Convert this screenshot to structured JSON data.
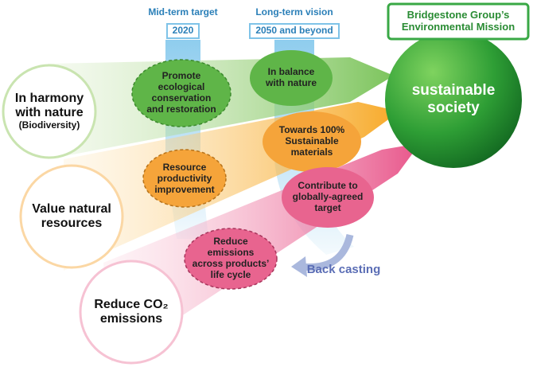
{
  "timeline": [
    {
      "label": "Mid-term target",
      "year": "2020"
    },
    {
      "label": "Long-term vision",
      "year": "2050 and beyond"
    }
  ],
  "mission": {
    "lines": [
      "Bridgestone Group’s",
      "Environmental Mission"
    ]
  },
  "goal": "sustainable society",
  "pillars": [
    {
      "title": "In harmony with nature",
      "note": "(Biodiversity)"
    },
    {
      "title": "Value natural resources"
    },
    {
      "title": "Reduce CO₂ emissions"
    }
  ],
  "initiatives": [
    {
      "mid_term": "Promote ecological conservation and restoration",
      "long_term": "In balance with nature"
    },
    {
      "mid_term": "Resource productivity improvement",
      "long_term": "Towards 100% Sustainable materials"
    },
    {
      "mid_term": "Reduce emissions across products’ life cycle",
      "long_term": "Contribute to globally-agreed target"
    }
  ],
  "back_casting": "Back casting"
}
